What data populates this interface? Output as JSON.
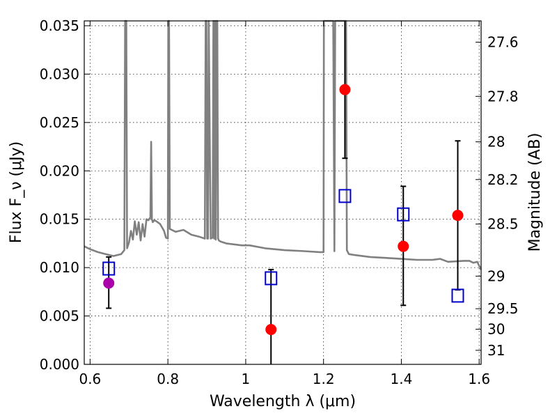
{
  "chart_data": {
    "type": "scatter",
    "xlabel": "Wavelength λ (μm)",
    "ylabel": "Flux F_ν (μJy)",
    "ylabel_right": "Magnitude (AB)",
    "xlim": [
      0.585,
      1.605
    ],
    "ylim": [
      0.0,
      0.0355
    ],
    "xticks": [
      0.6,
      0.8,
      1.0,
      1.2,
      1.4,
      1.6
    ],
    "xtick_labels": [
      "0.6",
      "0.8",
      "1",
      "1.2",
      "1.4",
      "1.6"
    ],
    "yticks": [
      0.0,
      0.005,
      0.01,
      0.015,
      0.02,
      0.025,
      0.03,
      0.035
    ],
    "ytick_labels": [
      "0.000",
      "0.005",
      "0.010",
      "0.015",
      "0.020",
      "0.025",
      "0.030",
      "0.035"
    ],
    "right_ticks": [
      {
        "label": "27.6",
        "flux": 0.0333
      },
      {
        "label": "27.8",
        "flux": 0.0277
      },
      {
        "label": "28",
        "flux": 0.023
      },
      {
        "label": "28.2",
        "flux": 0.0191
      },
      {
        "label": "28.5",
        "flux": 0.0145
      },
      {
        "label": "29",
        "flux": 0.00912
      },
      {
        "label": "29.5",
        "flux": 0.00575
      },
      {
        "label": "30",
        "flux": 0.00363
      },
      {
        "label": "31",
        "flux": 0.00145
      }
    ],
    "grid": true,
    "colors": {
      "model": "#808080",
      "observed": "#ff0000",
      "observed_purple": "#aa00aa",
      "model_band": "#0000cc",
      "errorbar": "#000000"
    },
    "model_spectrum": {
      "x": [
        0.585,
        0.6,
        0.62,
        0.64,
        0.66,
        0.68,
        0.688,
        0.69,
        0.691,
        0.693,
        0.695,
        0.7,
        0.705,
        0.71,
        0.715,
        0.72,
        0.725,
        0.73,
        0.735,
        0.74,
        0.745,
        0.75,
        0.755,
        0.757,
        0.759,
        0.761,
        0.765,
        0.77,
        0.78,
        0.79,
        0.795,
        0.8,
        0.801,
        0.803,
        0.805,
        0.81,
        0.82,
        0.84,
        0.86,
        0.88,
        0.895,
        0.897,
        0.899,
        0.901,
        0.903,
        0.905,
        0.91,
        0.915,
        0.917,
        0.919,
        0.921,
        0.923,
        0.925,
        0.927,
        0.929,
        0.931,
        0.935,
        0.95,
        0.97,
        0.99,
        1.01,
        1.05,
        1.1,
        1.15,
        1.19,
        1.2,
        1.201,
        1.203,
        1.205,
        1.21,
        1.22,
        1.225,
        1.228,
        1.23,
        1.232,
        1.234,
        1.236,
        1.24,
        1.245,
        1.25,
        1.255,
        1.258,
        1.26,
        1.265,
        1.28,
        1.32,
        1.36,
        1.4,
        1.44,
        1.48,
        1.5,
        1.52,
        1.56,
        1.575,
        1.585,
        1.595,
        1.605
      ],
      "y": [
        0.0122,
        0.0119,
        0.0116,
        0.0114,
        0.0112,
        0.0114,
        0.0118,
        0.0355,
        0.0355,
        0.0355,
        0.012,
        0.0126,
        0.0138,
        0.0129,
        0.0148,
        0.0134,
        0.0147,
        0.0128,
        0.0145,
        0.0132,
        0.015,
        0.0149,
        0.0152,
        0.023,
        0.015,
        0.0147,
        0.0149,
        0.0148,
        0.0145,
        0.0138,
        0.0131,
        0.013,
        0.0355,
        0.0355,
        0.014,
        0.0139,
        0.0137,
        0.0139,
        0.0134,
        0.0132,
        0.013,
        0.0355,
        0.0355,
        0.013,
        0.013,
        0.0355,
        0.013,
        0.0131,
        0.0355,
        0.013,
        0.0355,
        0.0129,
        0.0355,
        0.0355,
        0.013,
        0.0128,
        0.0127,
        0.0125,
        0.0124,
        0.0123,
        0.0123,
        0.012,
        0.0118,
        0.0117,
        0.0116,
        0.0116,
        0.0355,
        0.0355,
        0.0355,
        0.0355,
        0.0355,
        0.0355,
        0.0117,
        0.0355,
        0.0355,
        0.0355,
        0.0355,
        0.0355,
        0.0355,
        0.0355,
        0.0355,
        0.0355,
        0.0118,
        0.0114,
        0.0113,
        0.0111,
        0.011,
        0.0109,
        0.0108,
        0.0108,
        0.0109,
        0.0106,
        0.0107,
        0.0107,
        0.0105,
        0.0106,
        0.0098
      ]
    },
    "series": [
      {
        "marker": "circle",
        "color": "#ff0000",
        "points": [
          {
            "x": 1.065,
            "y": 0.0036,
            "yerr_low": 0.0036,
            "yerr_high": 0.0062
          },
          {
            "x": 1.255,
            "y": 0.0284,
            "yerr_low": 0.0071,
            "yerr_high": 0.0071
          },
          {
            "x": 1.405,
            "y": 0.0122,
            "yerr_low": 0.0061,
            "yerr_high": 0.0062
          },
          {
            "x": 1.545,
            "y": 0.0154,
            "yerr_low": 0.0077,
            "yerr_high": 0.0077
          }
        ]
      },
      {
        "marker": "circle",
        "color": "#aa00aa",
        "points": [
          {
            "x": 0.648,
            "y": 0.0084,
            "yerr_low": 0.0026,
            "yerr_high": 0.0027
          }
        ]
      },
      {
        "marker": "square",
        "color": "#0000cc",
        "points": [
          {
            "x": 0.648,
            "y": 0.0099
          },
          {
            "x": 1.065,
            "y": 0.0089
          },
          {
            "x": 1.255,
            "y": 0.0174
          },
          {
            "x": 1.405,
            "y": 0.0155
          },
          {
            "x": 1.545,
            "y": 0.0071
          }
        ]
      }
    ]
  }
}
